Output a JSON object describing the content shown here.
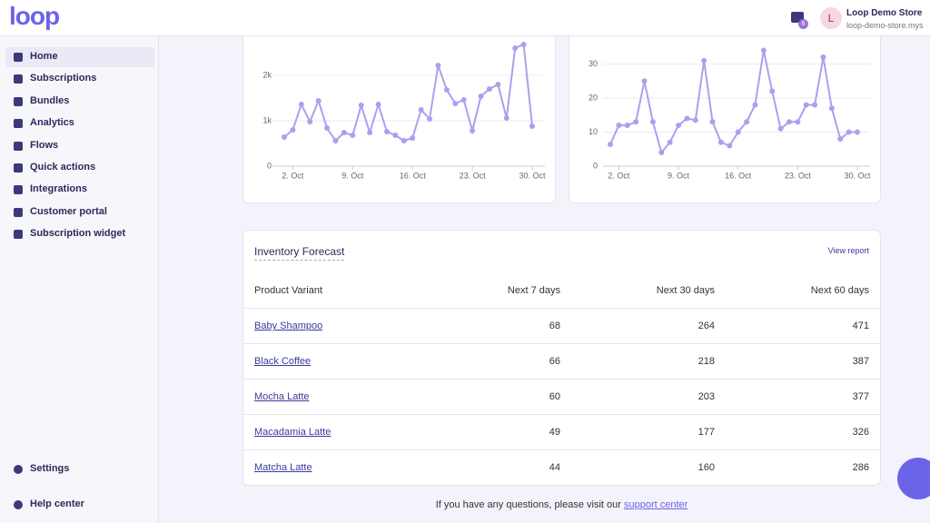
{
  "header": {
    "logo": "loop",
    "notification_count": "6",
    "avatar": "L",
    "store_name": "Loop Demo Store",
    "store_url": "loop-demo-store.mys"
  },
  "nav": [
    "Home",
    "Subscriptions",
    "Bundles",
    "Analytics",
    "Flows",
    "Quick actions",
    "Integrations",
    "Customer portal",
    "Subscription widget"
  ],
  "nav_bottom": [
    "Settings",
    "Help center"
  ],
  "chart_data": [
    {
      "type": "line",
      "color": "#a7a2ef",
      "x": [
        1,
        2,
        3,
        4,
        5,
        6,
        7,
        8,
        9,
        10,
        11,
        12,
        13,
        14,
        15,
        16,
        17,
        18,
        19,
        20,
        21,
        22,
        23,
        24,
        25,
        26,
        27,
        28,
        29,
        30
      ],
      "values": [
        640,
        800,
        1360,
        980,
        1440,
        840,
        560,
        740,
        680,
        1340,
        740,
        1360,
        760,
        680,
        560,
        620,
        1240,
        1040,
        2220,
        1680,
        1380,
        1460,
        780,
        1540,
        1700,
        1800,
        1060,
        2600,
        2680,
        880
      ],
      "xlim": [
        1,
        30
      ],
      "xticks": [
        {
          "value": 2,
          "label": "2. Oct"
        },
        {
          "value": 9,
          "label": "9. Oct"
        },
        {
          "value": 16,
          "label": "16. Oct"
        },
        {
          "value": 23,
          "label": "23. Oct"
        },
        {
          "value": 30,
          "label": "30. Oct"
        }
      ],
      "ylim": [
        0,
        3000
      ],
      "yticks": [
        0,
        {
          "value": 1000,
          "label": "1k"
        },
        {
          "value": 2000,
          "label": "2k"
        }
      ],
      "grid": true
    },
    {
      "type": "line",
      "color": "#a7a2ef",
      "x": [
        1,
        2,
        3,
        4,
        5,
        6,
        7,
        8,
        9,
        10,
        11,
        12,
        13,
        14,
        15,
        16,
        17,
        18,
        19,
        20,
        21,
        22,
        23,
        24,
        25,
        26,
        27,
        28,
        29,
        30
      ],
      "values": [
        6.4,
        12,
        12,
        13,
        25,
        13,
        4,
        7,
        12,
        14,
        13.5,
        31,
        13,
        7,
        6,
        10,
        13,
        18,
        34,
        22,
        11,
        13,
        13,
        18,
        18,
        32,
        17,
        8,
        10,
        10
      ],
      "xlim": [
        1,
        30
      ],
      "xticks": [
        {
          "value": 2,
          "label": "2. Oct"
        },
        {
          "value": 9,
          "label": "9. Oct"
        },
        {
          "value": 16,
          "label": "16. Oct"
        },
        {
          "value": 23,
          "label": "23. Oct"
        },
        {
          "value": 30,
          "label": "30. Oct"
        }
      ],
      "ylim": [
        0,
        40
      ],
      "yticks": [
        0,
        10,
        20,
        30
      ],
      "grid": true
    }
  ],
  "inventory": {
    "title": "Inventory Forecast",
    "link": "View report",
    "columns": [
      "Product Variant",
      "Next 7 days",
      "Next 30 days",
      "Next 60 days"
    ],
    "rows": [
      [
        "Baby Shampoo",
        "68",
        "264",
        "471"
      ],
      [
        "Black Coffee",
        "66",
        "218",
        "387"
      ],
      [
        "Mocha Latte",
        "60",
        "203",
        "377"
      ],
      [
        "Macadamia Latte",
        "49",
        "177",
        "326"
      ],
      [
        "Matcha Latte",
        "44",
        "160",
        "286"
      ]
    ]
  },
  "footer": {
    "text": "If you have any questions, please visit our",
    "link": "support center"
  }
}
